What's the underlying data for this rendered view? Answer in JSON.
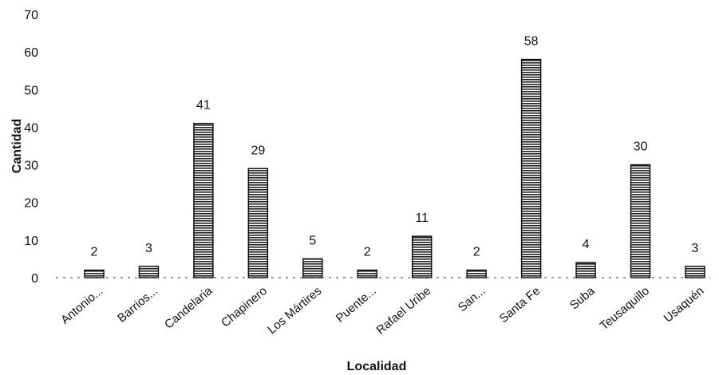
{
  "chart_data": {
    "type": "bar",
    "title": "",
    "xlabel": "Localidad",
    "ylabel": "Cantidad",
    "categories": [
      "Antonio...",
      "Barrios...",
      "Candelaria",
      "Chapinero",
      "Los Mártires",
      "Puente...",
      "Rafael Uribe",
      "San...",
      "Santa Fe",
      "Suba",
      "Teusaquillo",
      "Usaquén"
    ],
    "values": [
      2,
      3,
      41,
      29,
      5,
      2,
      11,
      2,
      58,
      4,
      30,
      3
    ],
    "ylim": [
      0,
      70
    ],
    "yticks": [
      0,
      10,
      20,
      30,
      40,
      50,
      60,
      70
    ],
    "data_labels": true,
    "grid": false,
    "legend": "none",
    "bar_fill": "horizontal-hatch",
    "bar_color": "#222222"
  }
}
